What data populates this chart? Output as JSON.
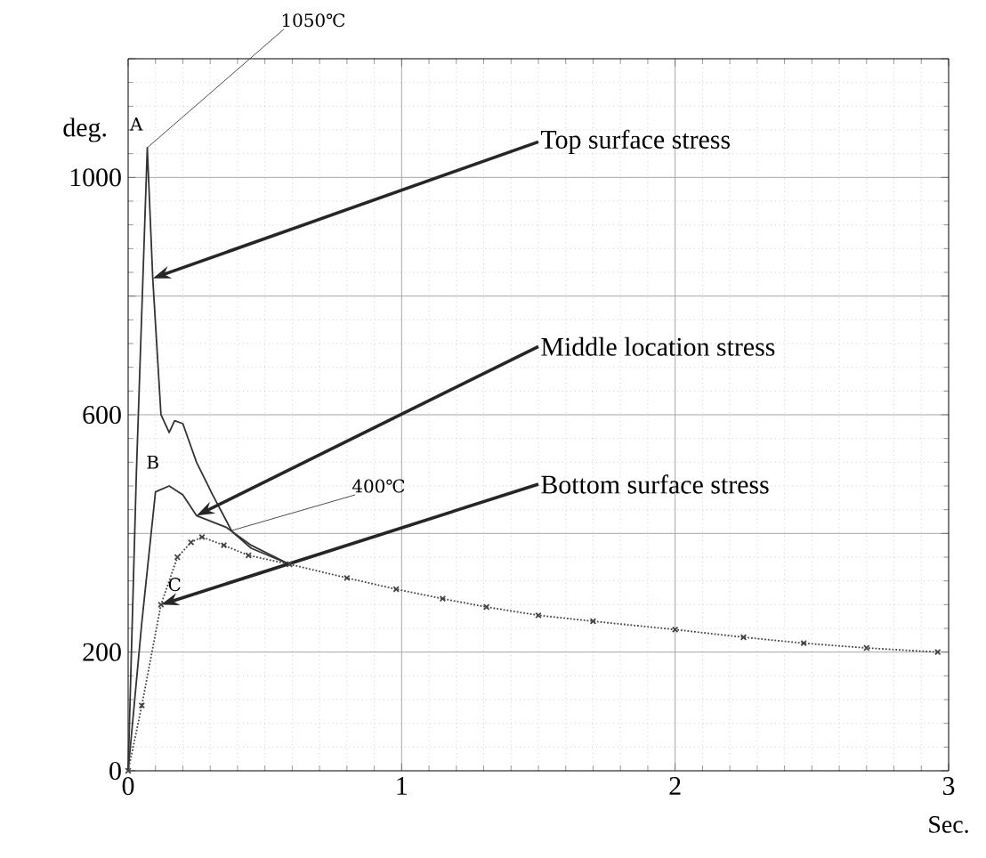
{
  "chart_data": {
    "type": "line",
    "xlabel": "Sec.",
    "ylabel": "deg.",
    "xlim": [
      0,
      3
    ],
    "ylim": [
      0,
      1200
    ],
    "xticks": [
      0,
      1,
      2,
      3
    ],
    "yticks": [
      0,
      200,
      {
        "value": 400,
        "label": null
      },
      600,
      {
        "value": 800,
        "label": null
      },
      1000,
      {
        "value": 1200,
        "label": null
      }
    ],
    "grid": true,
    "legend": false,
    "series": [
      {
        "name": "Top surface stress",
        "color": "#333333",
        "line_style": "solid",
        "marker": "none",
        "x": [
          0,
          0.03,
          0.07,
          0.09,
          0.12,
          0.15,
          0.17,
          0.2,
          0.25,
          0.31,
          0.38,
          0.45,
          0.59
        ],
        "values": [
          0,
          500,
          1050,
          830,
          600,
          570,
          590,
          585,
          520,
          464,
          403,
          375,
          348
        ]
      },
      {
        "name": "Middle location stress",
        "color": "#333333",
        "line_style": "solid",
        "marker": "none",
        "x": [
          0,
          0.05,
          0.1,
          0.15,
          0.2,
          0.25,
          0.36,
          0.45,
          0.59
        ],
        "values": [
          0,
          250,
          470,
          480,
          465,
          430,
          410,
          380,
          348
        ]
      },
      {
        "name": "Bottom surface stress",
        "color": "#444444",
        "line_style": "dotted",
        "marker": "cross",
        "x": [
          0,
          0.05,
          0.12,
          0.18,
          0.23,
          0.27,
          0.35,
          0.44,
          0.59,
          0.8,
          0.98,
          1.15,
          1.31,
          1.5,
          1.7,
          2.0,
          2.25,
          2.47,
          2.7,
          2.96
        ],
        "values": [
          0,
          110,
          280,
          360,
          385,
          394,
          380,
          363,
          348,
          325,
          306,
          290,
          276,
          262,
          252,
          238,
          225,
          215,
          207,
          200
        ]
      }
    ],
    "annotations": [
      {
        "text": "A",
        "x": 0.07,
        "y": 1050
      },
      {
        "text": "1050℃",
        "x": 0.07,
        "y": 1050
      },
      {
        "text": "B",
        "x": 0.15,
        "y": 480
      },
      {
        "text": "C",
        "x": 0.27,
        "y": 394
      },
      {
        "text": "400℃",
        "x": 0.38,
        "y": 405
      }
    ]
  }
}
